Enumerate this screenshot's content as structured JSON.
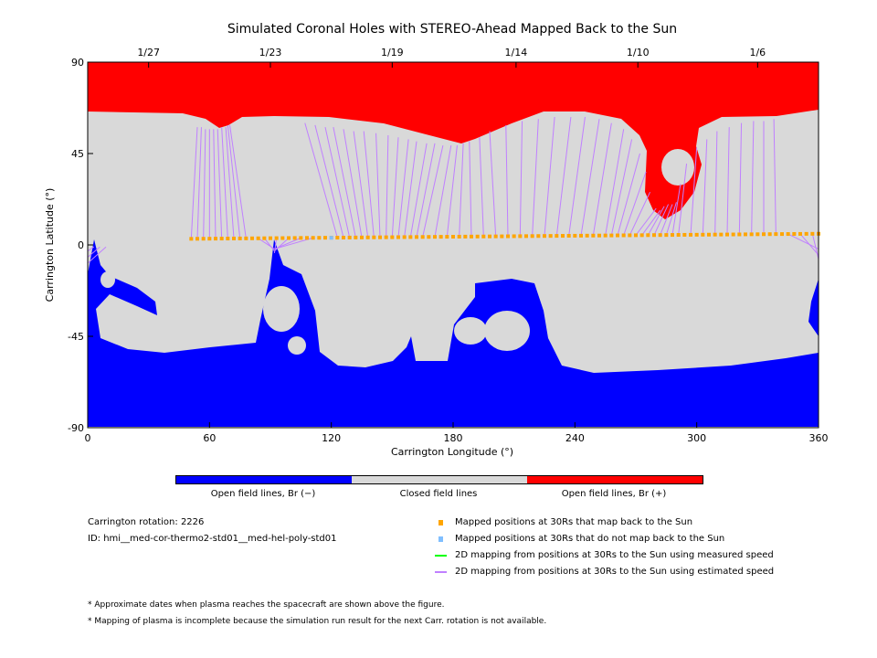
{
  "chart_data": {
    "type": "map",
    "title": "Simulated Coronal Holes with STEREO-Ahead Mapped Back to the Sun",
    "xlabel": "Carrington Longitude (°)",
    "ylabel": "Carrington Latitude (°)",
    "xlim": [
      0,
      360
    ],
    "ylim": [
      -90,
      90
    ],
    "xticks": [
      "0",
      "60",
      "120",
      "180",
      "240",
      "300",
      "360"
    ],
    "xtick_values": [
      0,
      60,
      120,
      180,
      240,
      300,
      360
    ],
    "yticks": [
      "90",
      "45",
      "0",
      "-45",
      "-90"
    ],
    "ytick_values": [
      90,
      45,
      0,
      -45,
      -90
    ],
    "date_ticks": [
      {
        "label": "1/27",
        "lon": 30
      },
      {
        "label": "1/23",
        "lon": 90
      },
      {
        "label": "1/19",
        "lon": 150
      },
      {
        "label": "1/14",
        "lon": 211
      },
      {
        "label": "1/10",
        "lon": 271
      },
      {
        "label": "1/6",
        "lon": 330
      }
    ],
    "points_map_back": {
      "lon_start": 51,
      "lon_end": 360,
      "lon_step": 3,
      "lat_start": 3,
      "lat_end": 5.5
    },
    "points_no_map_back": [
      {
        "lon": 120,
        "lat": 3.5
      }
    ],
    "mapping_estimated": [
      [
        51,
        54,
        58
      ],
      [
        54,
        56,
        58
      ],
      [
        57,
        58,
        57
      ],
      [
        60,
        60,
        57
      ],
      [
        63,
        62,
        57
      ],
      [
        66,
        64,
        57
      ],
      [
        69,
        66,
        58
      ],
      [
        72,
        68,
        58
      ],
      [
        75,
        69,
        59
      ],
      [
        78,
        70,
        59
      ],
      [
        84,
        92,
        -2
      ],
      [
        87,
        92,
        -3
      ],
      [
        93,
        92,
        -4
      ],
      [
        99,
        92,
        -3
      ],
      [
        105,
        92,
        -2
      ],
      [
        111,
        92,
        -2
      ],
      [
        123,
        107,
        60
      ],
      [
        126,
        112,
        59
      ],
      [
        129,
        117,
        58
      ],
      [
        132,
        121,
        58
      ],
      [
        135,
        126,
        57
      ],
      [
        138,
        131,
        56
      ],
      [
        141,
        136,
        56
      ],
      [
        144,
        142,
        55
      ],
      [
        147,
        148,
        54
      ],
      [
        150,
        153,
        53
      ],
      [
        153,
        158,
        52
      ],
      [
        156,
        162,
        51
      ],
      [
        159,
        167,
        50
      ],
      [
        162,
        171,
        50
      ],
      [
        165,
        175,
        49
      ],
      [
        171,
        179,
        49
      ],
      [
        177,
        182,
        49
      ],
      [
        183,
        185,
        50
      ],
      [
        189,
        188,
        51
      ],
      [
        195,
        193,
        53
      ],
      [
        201,
        198,
        56
      ],
      [
        207,
        206,
        59
      ],
      [
        213,
        214,
        61
      ],
      [
        219,
        222,
        62
      ],
      [
        225,
        230,
        63
      ],
      [
        231,
        238,
        63
      ],
      [
        237,
        245,
        63
      ],
      [
        243,
        252,
        62
      ],
      [
        249,
        258,
        60
      ],
      [
        255,
        264,
        57
      ],
      [
        258,
        268,
        52
      ],
      [
        261,
        272,
        45
      ],
      [
        264,
        275,
        36
      ],
      [
        267,
        277,
        26
      ],
      [
        270,
        280,
        18
      ],
      [
        273,
        282,
        17
      ],
      [
        276,
        284,
        19
      ],
      [
        279,
        286,
        20
      ],
      [
        282,
        288,
        20
      ],
      [
        285,
        290,
        21
      ],
      [
        288,
        292,
        30
      ],
      [
        291,
        295,
        40
      ],
      [
        297,
        300,
        48
      ],
      [
        303,
        305,
        52
      ],
      [
        309,
        310,
        56
      ],
      [
        315,
        316,
        58
      ],
      [
        321,
        322,
        60
      ],
      [
        327,
        328,
        61
      ],
      [
        333,
        333,
        61
      ],
      [
        339,
        338,
        62
      ],
      [
        345,
        360,
        -2
      ],
      [
        351,
        360,
        -5
      ],
      [
        357,
        360,
        -7
      ],
      [
        3,
        0,
        -3
      ],
      [
        6,
        0,
        -6
      ],
      [
        9,
        0,
        -9
      ]
    ],
    "mapping_measured": [],
    "colorbar": {
      "segments": [
        {
          "label": "Open field lines, Br (−)",
          "color": "#0000ff"
        },
        {
          "label": "Closed field lines",
          "color": "#d9d9d9"
        },
        {
          "label": "Open field lines, Br (+)",
          "color": "#ff0000"
        }
      ]
    },
    "legend": [
      {
        "label": "Mapped positions at 30Rs that map back to the Sun",
        "color": "#ffa500",
        "kind": "square"
      },
      {
        "label": "Mapped positions at 30Rs that do not map back to the Sun",
        "color": "#80bfff",
        "kind": "square"
      },
      {
        "label": "2D mapping from positions at 30Rs to the Sun using measured speed",
        "color": "#00ff00",
        "kind": "line"
      },
      {
        "label": "2D mapping from positions at 30Rs to the Sun using estimated speed",
        "color": "#c080ff",
        "kind": "line"
      }
    ]
  },
  "info": {
    "rotation": "Carrington rotation: 2226",
    "id": "ID: hmi__med-cor-thermo2-std01__med-hel-poly-std01"
  },
  "notes": [
    "* Approximate dates when plasma reaches the spacecraft are shown above the figure.",
    "* Mapping of plasma is incomplete because the simulation run result for the next Carr. rotation is not available."
  ]
}
